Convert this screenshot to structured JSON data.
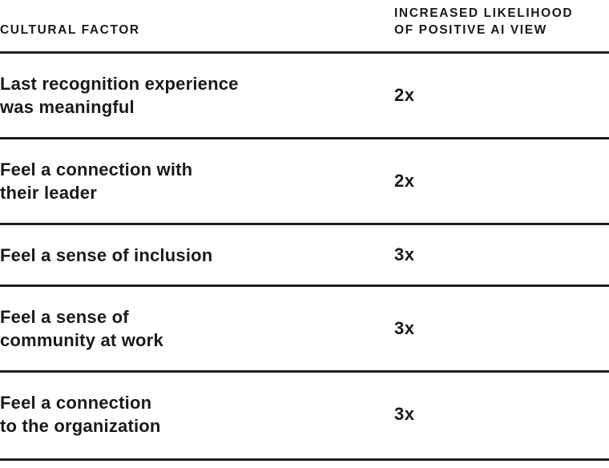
{
  "header": {
    "factor_label": "CULTURAL FACTOR",
    "likelihood_label_line1": "INCREASED LIKELIHOOD",
    "likelihood_label_line2": "OF POSITIVE AI VIEW"
  },
  "rows": [
    {
      "factor": "Last recognition experience\nwas meaningful",
      "value": "2x"
    },
    {
      "factor": "Feel a connection with\ntheir leader",
      "value": "2x"
    },
    {
      "factor": "Feel a sense of inclusion",
      "value": "3x"
    },
    {
      "factor": "Feel a sense of\ncommunity at work",
      "value": "3x"
    },
    {
      "factor": "Feel a connection\nto the organization",
      "value": "3x"
    }
  ]
}
